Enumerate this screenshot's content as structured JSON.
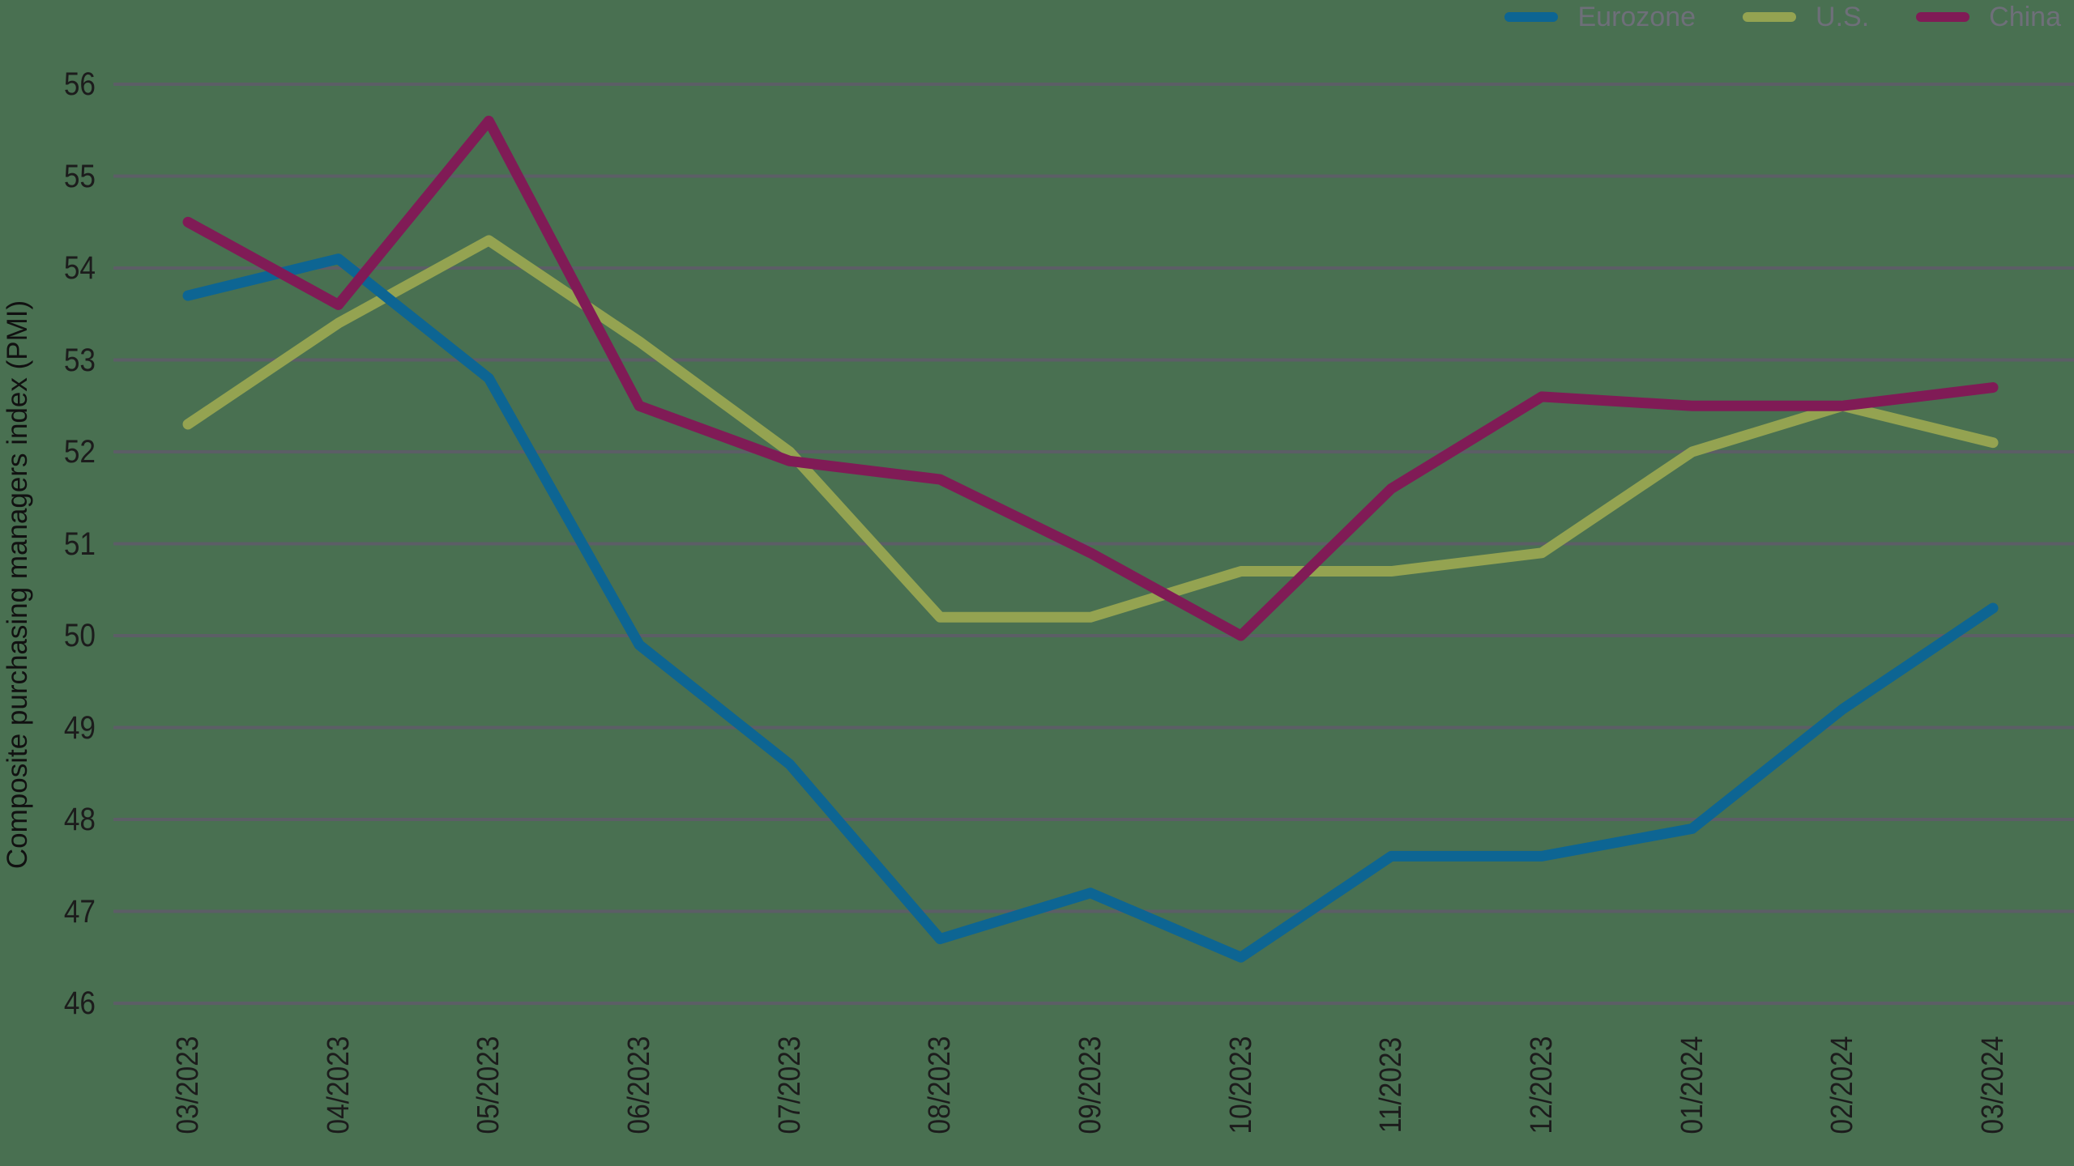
{
  "colors": {
    "background": "#497051",
    "gridline": "#5C5E66",
    "axis_tick_text": "#1C1C1C",
    "y_axis_title_text": "#111111",
    "legend_text": "#6E6F79",
    "eurozone_line": "#0D6593",
    "us_line": "#94A351",
    "china_line": "#801B56"
  },
  "legend": {
    "items": [
      {
        "label": "Eurozone",
        "color": "#0D6593"
      },
      {
        "label": "U.S.",
        "color": "#94A351"
      },
      {
        "label": "China",
        "color": "#801B56"
      }
    ]
  },
  "chart_data": {
    "type": "line",
    "title": "",
    "xlabel": "",
    "ylabel": "Composite purchasing managers index (PMI)",
    "ylim": [
      46,
      56
    ],
    "yticks": [
      56,
      55,
      54,
      53,
      52,
      51,
      50,
      49,
      48,
      47,
      46
    ],
    "grid": "horizontal",
    "legend_position": "top-right",
    "x_tick_rotation": 90,
    "categories": [
      "03/2023",
      "04/2023",
      "05/2023",
      "06/2023",
      "07/2023",
      "08/2023",
      "09/2023",
      "10/2023",
      "11/2023",
      "12/2023",
      "01/2024",
      "02/2024",
      "03/2024"
    ],
    "series": [
      {
        "name": "Eurozone",
        "color": "#0D6593",
        "values": [
          53.7,
          54.1,
          52.8,
          49.9,
          48.6,
          46.7,
          47.2,
          46.5,
          47.6,
          47.6,
          47.9,
          49.2,
          50.3
        ]
      },
      {
        "name": "U.S.",
        "color": "#94A351",
        "values": [
          52.3,
          53.4,
          54.3,
          53.2,
          52.0,
          50.2,
          50.2,
          50.7,
          50.7,
          50.9,
          52.0,
          52.5,
          52.1
        ]
      },
      {
        "name": "China",
        "color": "#801B56",
        "values": [
          54.5,
          53.6,
          55.6,
          52.5,
          51.9,
          51.7,
          50.9,
          50.0,
          51.6,
          52.6,
          52.5,
          52.5,
          52.7
        ]
      }
    ]
  }
}
